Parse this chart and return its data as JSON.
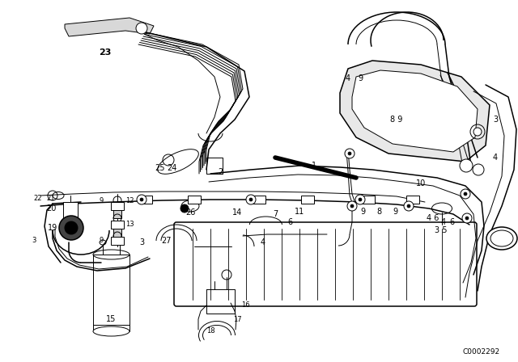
{
  "bg_color": "#ffffff",
  "line_color": "#000000",
  "fig_width": 6.4,
  "fig_height": 4.48,
  "dpi": 100,
  "diagram_code": "C0002292"
}
